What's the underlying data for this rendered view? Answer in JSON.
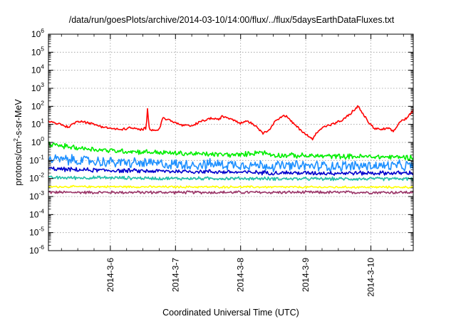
{
  "chart_data": {
    "type": "line",
    "title": "/data/run/goesPlots/archive/2014-03-10/14:00/flux/../flux/5daysEarthDataFluxes.txt",
    "xlabel": "Coordinated Universal Time (UTC)",
    "ylabel": "protons/cm²-s-sr-MeV",
    "ylabel_parts": [
      "protons/cm",
      "2",
      "-s-sr-MeV"
    ],
    "yscale": "log",
    "ylim_exp": [
      -6,
      6
    ],
    "y_ticks": [
      {
        "base": "10",
        "exp": "6"
      },
      {
        "base": "10",
        "exp": "5"
      },
      {
        "base": "10",
        "exp": "4"
      },
      {
        "base": "10",
        "exp": "3"
      },
      {
        "base": "10",
        "exp": "2"
      },
      {
        "base": "10",
        "exp": "1"
      },
      {
        "base": "10",
        "exp": "0"
      },
      {
        "base": "10",
        "exp": "-1"
      },
      {
        "base": "10",
        "exp": "-2"
      },
      {
        "base": "10",
        "exp": "-3"
      },
      {
        "base": "10",
        "exp": "-4"
      },
      {
        "base": "10",
        "exp": "-5"
      },
      {
        "base": "10",
        "exp": "-6"
      }
    ],
    "x_ticks": [
      "2014-3-6",
      "2014-3-7",
      "2014-3-8",
      "2014-3-9",
      "2014-3-10"
    ],
    "xlim_days": [
      5.05,
      10.65
    ],
    "grid": true,
    "series": [
      {
        "color": "#ff0000",
        "noise": 0.06,
        "points": [
          [
            5.05,
            15
          ],
          [
            5.2,
            11
          ],
          [
            5.35,
            7
          ],
          [
            5.45,
            12
          ],
          [
            5.55,
            16
          ],
          [
            5.7,
            11
          ],
          [
            5.85,
            8
          ],
          [
            6.0,
            6
          ],
          [
            6.15,
            5
          ],
          [
            6.3,
            6.5
          ],
          [
            6.45,
            5
          ],
          [
            6.55,
            6
          ],
          [
            6.57,
            65
          ],
          [
            6.6,
            6
          ],
          [
            6.65,
            4.8
          ],
          [
            6.75,
            5
          ],
          [
            6.8,
            22
          ],
          [
            6.9,
            18
          ],
          [
            7.0,
            12
          ],
          [
            7.1,
            9
          ],
          [
            7.25,
            8
          ],
          [
            7.4,
            15
          ],
          [
            7.55,
            22
          ],
          [
            7.65,
            18
          ],
          [
            7.72,
            28
          ],
          [
            7.8,
            24
          ],
          [
            7.9,
            18
          ],
          [
            8.0,
            12
          ],
          [
            8.1,
            16
          ],
          [
            8.2,
            10
          ],
          [
            8.3,
            5
          ],
          [
            8.35,
            3
          ],
          [
            8.45,
            6
          ],
          [
            8.55,
            18
          ],
          [
            8.65,
            30
          ],
          [
            8.7,
            28
          ],
          [
            8.8,
            12
          ],
          [
            8.95,
            4
          ],
          [
            9.05,
            2
          ],
          [
            9.1,
            1.5
          ],
          [
            9.2,
            5
          ],
          [
            9.3,
            8
          ],
          [
            9.4,
            10
          ],
          [
            9.55,
            16
          ],
          [
            9.65,
            30
          ],
          [
            9.75,
            65
          ],
          [
            9.8,
            100
          ],
          [
            9.85,
            55
          ],
          [
            9.95,
            15
          ],
          [
            10.05,
            6
          ],
          [
            10.15,
            5
          ],
          [
            10.25,
            6
          ],
          [
            10.35,
            4
          ],
          [
            10.45,
            15
          ],
          [
            10.55,
            22
          ],
          [
            10.65,
            60
          ]
        ]
      },
      {
        "color": "#00ee00",
        "noise": 0.12,
        "points": [
          [
            5.05,
            0.8
          ],
          [
            5.5,
            0.5
          ],
          [
            6.0,
            0.35
          ],
          [
            6.5,
            0.3
          ],
          [
            7.0,
            0.25
          ],
          [
            7.5,
            0.22
          ],
          [
            8.0,
            0.2
          ],
          [
            8.3,
            0.3
          ],
          [
            8.5,
            0.2
          ],
          [
            9.0,
            0.18
          ],
          [
            9.5,
            0.17
          ],
          [
            10.0,
            0.16
          ],
          [
            10.65,
            0.15
          ]
        ]
      },
      {
        "color": "#1e90ff",
        "noise": 0.25,
        "points": [
          [
            5.05,
            0.12
          ],
          [
            5.5,
            0.1
          ],
          [
            6.0,
            0.08
          ],
          [
            6.5,
            0.07
          ],
          [
            7.0,
            0.06
          ],
          [
            7.5,
            0.06
          ],
          [
            8.0,
            0.06
          ],
          [
            8.5,
            0.05
          ],
          [
            9.0,
            0.05
          ],
          [
            9.5,
            0.05
          ],
          [
            10.0,
            0.05
          ],
          [
            10.65,
            0.05
          ]
        ]
      },
      {
        "color": "#0000cd",
        "noise": 0.1,
        "points": [
          [
            5.05,
            0.035
          ],
          [
            5.5,
            0.03
          ],
          [
            6.0,
            0.028
          ],
          [
            6.5,
            0.026
          ],
          [
            7.0,
            0.025
          ],
          [
            7.5,
            0.024
          ],
          [
            8.0,
            0.022
          ],
          [
            8.5,
            0.021
          ],
          [
            9.0,
            0.02
          ],
          [
            9.5,
            0.02
          ],
          [
            10.0,
            0.02
          ],
          [
            10.65,
            0.02
          ]
        ]
      },
      {
        "color": "#20c0a8",
        "noise": 0.08,
        "points": [
          [
            5.05,
            0.011
          ],
          [
            6.0,
            0.011
          ],
          [
            7.0,
            0.01
          ],
          [
            8.0,
            0.01
          ],
          [
            9.0,
            0.0095
          ],
          [
            10.0,
            0.0095
          ],
          [
            10.65,
            0.0095
          ]
        ]
      },
      {
        "color": "#ffff00",
        "noise": 0.05,
        "points": [
          [
            5.05,
            0.0035
          ],
          [
            6.0,
            0.0035
          ],
          [
            7.0,
            0.0034
          ],
          [
            8.0,
            0.0034
          ],
          [
            9.0,
            0.0033
          ],
          [
            10.0,
            0.0033
          ],
          [
            10.65,
            0.0033
          ]
        ]
      },
      {
        "color": "#993366",
        "noise": 0.07,
        "points": [
          [
            5.05,
            0.0017
          ],
          [
            6.0,
            0.0017
          ],
          [
            7.0,
            0.0017
          ],
          [
            8.0,
            0.0017
          ],
          [
            9.0,
            0.0017
          ],
          [
            10.0,
            0.0017
          ],
          [
            10.65,
            0.0017
          ]
        ]
      }
    ]
  }
}
